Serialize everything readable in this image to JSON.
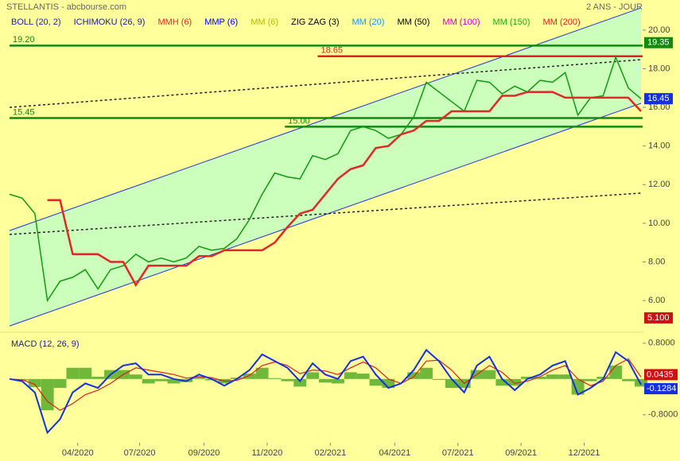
{
  "chart_data": {
    "type": "stock",
    "title": "STELLANTIS - abcbourse.com",
    "subtitle": "2 ANS - JOUR",
    "xlim": [
      0,
      50
    ],
    "xticks": [
      {
        "value": 5.4,
        "label": "04/2020"
      },
      {
        "value": 10.3,
        "label": "07/2020"
      },
      {
        "value": 15.4,
        "label": "09/2020"
      },
      {
        "value": 20.4,
        "label": "11/2020"
      },
      {
        "value": 25.4,
        "label": "02/2021"
      },
      {
        "value": 30.5,
        "label": "04/2021"
      },
      {
        "value": 35.5,
        "label": "07/2021"
      },
      {
        "value": 40.5,
        "label": "09/2021"
      },
      {
        "value": 45.5,
        "label": "12/2021"
      }
    ],
    "ylim": [
      4.48,
      21.56
    ],
    "yticks": [
      {
        "value": 6,
        "label": "6.00"
      },
      {
        "value": 8,
        "label": "8.00"
      },
      {
        "value": 10,
        "label": "10.00"
      },
      {
        "value": 12,
        "label": "12.00"
      },
      {
        "value": 14,
        "label": "14.00"
      },
      {
        "value": 16,
        "label": "16.00"
      },
      {
        "value": 18,
        "label": "18.00"
      },
      {
        "value": 20,
        "label": "20.00"
      }
    ],
    "channel": {
      "fill": "#ccffbb",
      "color": "#2233dd",
      "upper": [
        9.62,
        21.15
      ],
      "lower": [
        4.68,
        16.21
      ]
    },
    "trendlines": [
      {
        "color": "#222222",
        "y": [
          16.0,
          18.47
        ]
      },
      {
        "color": "#222222",
        "y": [
          9.42,
          11.56
        ]
      }
    ],
    "close": {
      "color": "#109a10",
      "values": [
        11.5,
        11.3,
        10.5,
        6.0,
        7.0,
        7.2,
        7.6,
        6.6,
        7.6,
        7.8,
        8.4,
        8.0,
        8.2,
        8.0,
        8.2,
        8.8,
        8.6,
        8.7,
        9.2,
        10.2,
        11.5,
        12.6,
        12.4,
        12.3,
        13.5,
        13.3,
        13.6,
        14.8,
        15.0,
        14.8,
        14.4,
        14.6,
        15.5,
        17.3,
        16.8,
        16.3,
        15.8,
        17.4,
        17.3,
        16.7,
        17.1,
        16.8,
        17.4,
        17.3,
        17.8,
        15.6,
        16.5,
        16.6,
        18.6,
        17.0,
        16.45
      ]
    },
    "series": [
      {
        "name": "BOLL (20, 2)",
        "color": "#2020c0"
      },
      {
        "name": "ICHIMOKU (26, 9)",
        "color": "#1a1aa0"
      },
      {
        "name": "MMH (6)",
        "color": "#e02828",
        "values": [
          null,
          null,
          null,
          11.2,
          11.2,
          8.4,
          8.4,
          8.4,
          8.0,
          8.0,
          6.8,
          7.8,
          7.8,
          7.8,
          7.8,
          8.3,
          8.3,
          8.6,
          8.6,
          8.6,
          8.6,
          9.0,
          9.8,
          10.5,
          10.7,
          11.5,
          12.3,
          12.8,
          13.0,
          13.9,
          14.0,
          14.6,
          14.8,
          15.3,
          15.3,
          15.8,
          15.8,
          15.8,
          15.8,
          16.6,
          16.6,
          16.8,
          16.8,
          16.8,
          16.5,
          16.5,
          16.5,
          16.5,
          16.5,
          16.5,
          15.8
        ]
      },
      {
        "name": "MMP (6)",
        "color": "#0000ff"
      },
      {
        "name": "MM (6)",
        "color": "#b8b800"
      },
      {
        "name": "ZIG ZAG (3)",
        "color": "#000000"
      },
      {
        "name": "MM (20)",
        "color": "#1e90ff"
      },
      {
        "name": "MM (50)",
        "color": "#000000"
      },
      {
        "name": "MM (100)",
        "color": "#cc00cc"
      },
      {
        "name": "MM (150)",
        "color": "#10b010"
      },
      {
        "name": "MM (200)",
        "color": "#e02020"
      }
    ],
    "levels": [
      {
        "value": 19.2,
        "label": "19.20",
        "color": "#128a12",
        "from": 0
      },
      {
        "value": 18.65,
        "label": "18.65",
        "color": "#e02020",
        "from": 24.4
      },
      {
        "value": 15.45,
        "label": "15.45",
        "color": "#128a12",
        "from": 0
      },
      {
        "value": 15.0,
        "label": "15.00",
        "color": "#128a12",
        "from": 21.8
      }
    ],
    "price_markers": [
      {
        "value": 19.35,
        "label": "19.35",
        "color": "#128a12"
      },
      {
        "value": 16.45,
        "label": "16.45",
        "color": "#1530e0"
      },
      {
        "value": 5.1,
        "label": "5.100",
        "color": "#d01010"
      }
    ],
    "macd": {
      "title": "MACD (12, 26, 9)",
      "ylim": [
        -1.39,
        1.01
      ],
      "yticks": [
        {
          "value": 0.8,
          "label": "0.8000"
        },
        {
          "value": -0.8,
          "label": "-0.8000"
        }
      ],
      "histogram": {
        "color": "#6fb83a",
        "values": [
          0,
          -0.03,
          -0.18,
          -0.7,
          -0.2,
          0.25,
          0.25,
          0.05,
          0.2,
          0.2,
          0.1,
          -0.1,
          -0.05,
          -0.1,
          -0.07,
          0.05,
          -0.03,
          -0.1,
          0.03,
          0.12,
          0.25,
          0.02,
          -0.05,
          -0.17,
          0.15,
          -0.08,
          -0.1,
          0.15,
          0.12,
          -0.15,
          -0.2,
          0.0,
          0.15,
          0.25,
          -0.02,
          -0.2,
          -0.2,
          0.2,
          0.2,
          -0.15,
          -0.15,
          0.05,
          0.05,
          0.1,
          0.1,
          -0.35,
          -0.05,
          0.05,
          0.3,
          -0.05,
          -0.17
        ]
      },
      "macd": {
        "color": "#1530e0",
        "values": [
          0,
          -0.05,
          -0.3,
          -1.2,
          -0.9,
          -0.3,
          -0.1,
          -0.2,
          0.1,
          0.3,
          0.35,
          0.1,
          0.1,
          0.0,
          -0.05,
          0.1,
          0.0,
          -0.15,
          0.0,
          0.2,
          0.55,
          0.4,
          0.25,
          -0.05,
          0.35,
          0.1,
          0.0,
          0.4,
          0.5,
          0.1,
          -0.2,
          -0.1,
          0.2,
          0.65,
          0.4,
          0.0,
          -0.3,
          0.3,
          0.5,
          0.0,
          -0.25,
          0.0,
          0.1,
          0.3,
          0.4,
          -0.35,
          -0.2,
          0.0,
          0.6,
          0.4,
          -0.1284
        ]
      },
      "signal": {
        "color": "#e02020",
        "values": [
          0,
          -0.02,
          -0.12,
          -0.5,
          -0.7,
          -0.55,
          -0.35,
          -0.25,
          -0.1,
          0.1,
          0.25,
          0.2,
          0.15,
          0.1,
          0.02,
          0.05,
          0.03,
          -0.05,
          -0.03,
          0.08,
          0.3,
          0.38,
          0.3,
          0.12,
          0.2,
          0.18,
          0.1,
          0.25,
          0.38,
          0.25,
          0.0,
          -0.1,
          0.05,
          0.4,
          0.42,
          0.2,
          -0.1,
          0.1,
          0.3,
          0.15,
          -0.1,
          -0.05,
          0.05,
          0.2,
          0.3,
          0.0,
          -0.15,
          -0.05,
          0.3,
          0.45,
          0.0435
        ]
      },
      "markers": [
        {
          "value": 0.0435,
          "label": "0.0435",
          "color": "#d01010"
        },
        {
          "value": -0.1284,
          "label": "-0.1284",
          "color": "#1530e0"
        }
      ]
    }
  }
}
